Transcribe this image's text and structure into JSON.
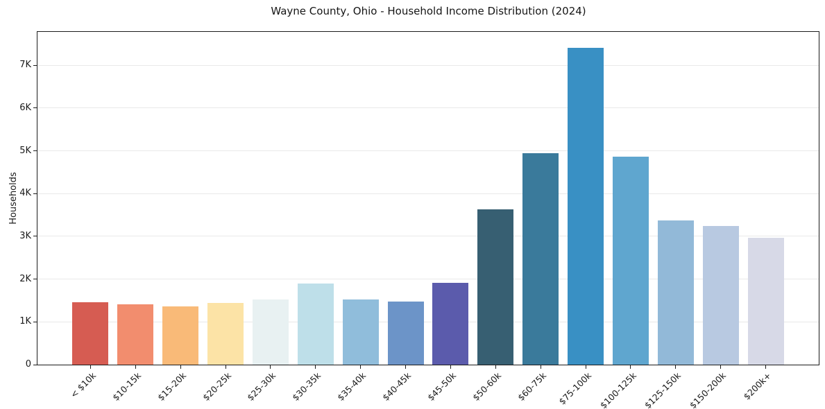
{
  "chart_data": {
    "type": "bar",
    "title": "Wayne County, Ohio - Household Income Distribution (2024)",
    "xlabel": "",
    "ylabel": "Households",
    "categories": [
      "< $10k",
      "$10-15k",
      "$15-20k",
      "$20-25k",
      "$25-30k",
      "$30-35k",
      "$35-40k",
      "$40-45k",
      "$45-50k",
      "$50-60k",
      "$60-75k",
      "$75-100k",
      "$100-125k",
      "$125-150k",
      "$150-200k",
      "$200k+"
    ],
    "values": [
      1455,
      1410,
      1365,
      1445,
      1530,
      1895,
      1520,
      1480,
      1905,
      3635,
      4950,
      7415,
      4855,
      3365,
      3245,
      2970
    ],
    "bar_colors": [
      "#d65c52",
      "#f28d6e",
      "#f9ba78",
      "#fce3a6",
      "#e8f1f2",
      "#bedfe9",
      "#90bddb",
      "#6c94c8",
      "#5b5bac",
      "#375f72",
      "#3a7a9b",
      "#3990c4",
      "#5fa6cf",
      "#92b9d8",
      "#b8c9e1",
      "#d7d9e7"
    ],
    "ylim": [
      0,
      7780
    ],
    "yticks": [
      {
        "value": 0,
        "label": "0"
      },
      {
        "value": 1000,
        "label": "1K"
      },
      {
        "value": 2000,
        "label": "2K"
      },
      {
        "value": 3000,
        "label": "3K"
      },
      {
        "value": 4000,
        "label": "4K"
      },
      {
        "value": 5000,
        "label": "5K"
      },
      {
        "value": 6000,
        "label": "6K"
      },
      {
        "value": 7000,
        "label": "7K"
      }
    ],
    "grid": "horizontal",
    "legend": "none"
  },
  "colors": {
    "spine": "#1a1a1a",
    "gridline": "#e9e9e9",
    "tick": "#1a1a1a",
    "background": "#ffffff"
  }
}
